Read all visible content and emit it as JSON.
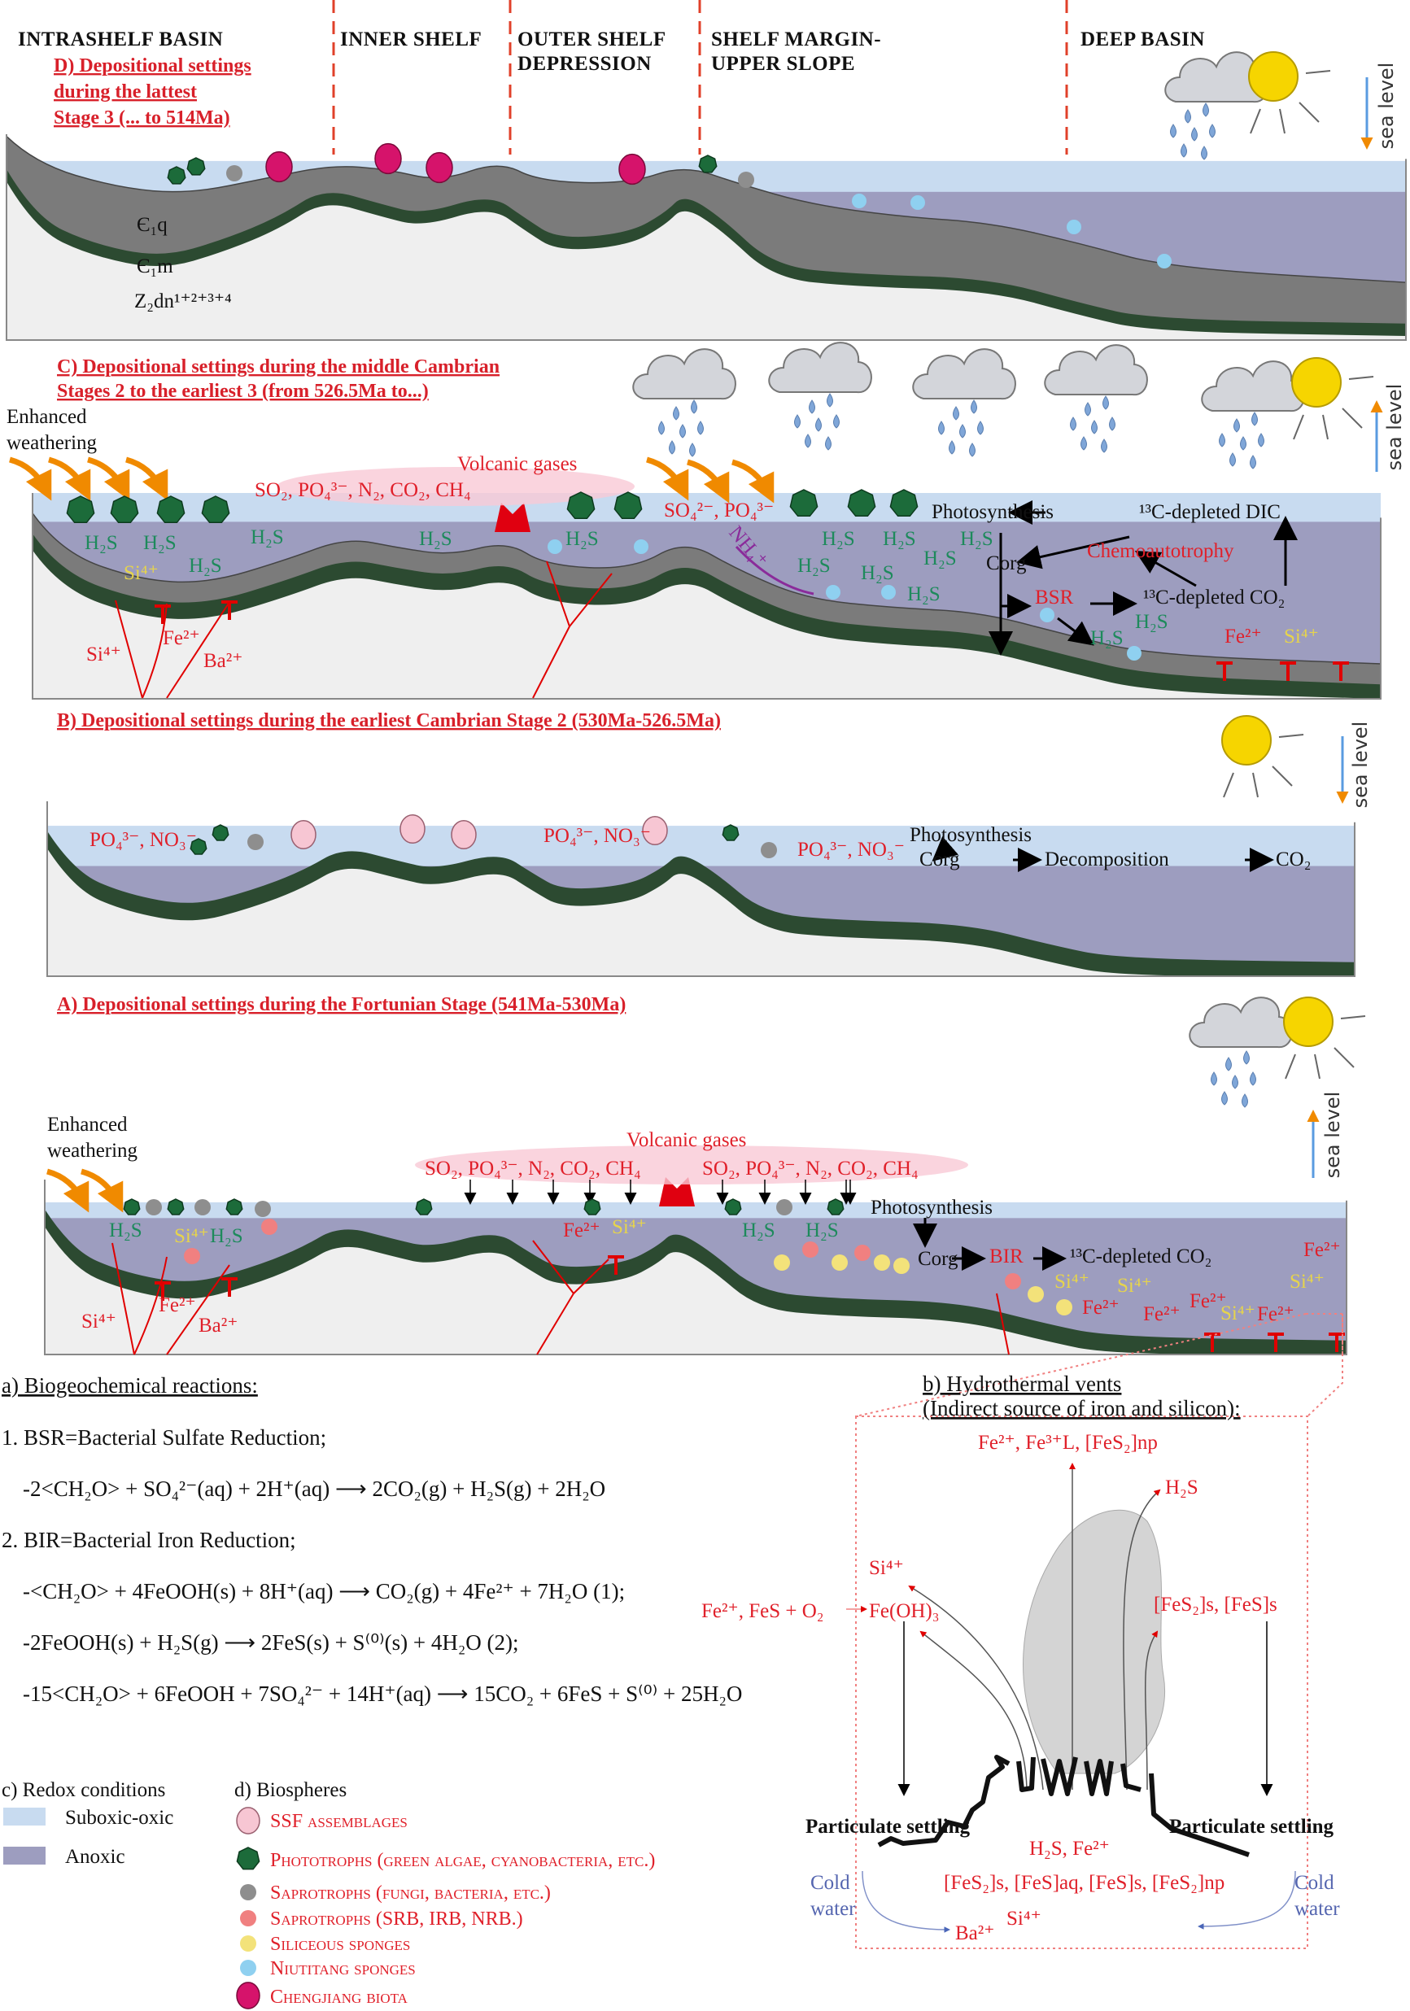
{
  "colors": {
    "suboxic_oxic": "#c8dbf0",
    "anoxic": "#9d9dbf",
    "rock_gray": "#7b7b7b",
    "rock_green": "#2c4a31",
    "basement": "#efefef",
    "label_red": "#e0202a",
    "label_green": "#1e8a5c",
    "label_yellow": "#e6d44c",
    "weathering_orange": "#f08a00",
    "zone_divider": "#e0402a"
  },
  "zones": {
    "intrashelf": "INTRASHELF BASIN",
    "inner_shelf": "INNER SHELF",
    "outer_shelf": [
      "OUTER SHELF",
      "DEPRESSION"
    ],
    "shelf_margin": [
      "SHELF MARGIN-",
      "UPPER SLOPE"
    ],
    "deep_basin": "DEEP BASIN"
  },
  "panel_d": {
    "title": [
      "D) Depositional settings",
      "during the lattest",
      "Stage 3  (... to 514Ma)"
    ],
    "strata": {
      "upper": "Є₁q",
      "middle": "Є₁m",
      "lower": "Z₂dn¹⁺²⁺³⁺⁴"
    },
    "sea_level": "sea level",
    "sea_level_trend": "falling"
  },
  "panel_c": {
    "title": [
      "C) Depositional settings during the middle Cambrian",
      "Stages 2 to the earliest 3 (from 526.5Ma to...)"
    ],
    "weathering": [
      "Enhanced",
      "weathering"
    ],
    "volcanic": "Volcanic gases",
    "gases": "SO₂, PO₄³⁻, N₂, CO₂, CH₄",
    "nutrients": "SO₄²⁻, PO₄³⁻",
    "h2s": "H₂S",
    "si": "Si⁴⁺",
    "fe": "Fe²⁺",
    "ba": "Ba²⁺",
    "nh4": "NH₄⁺",
    "photosynthesis": "Photosynthesis",
    "dic": "¹³C-depleted DIC",
    "corg": "Corg",
    "chemo": "Chemoautotrophy",
    "bsr": "BSR",
    "co2": "¹³C-depleted CO₂",
    "sea_level": "sea level",
    "sea_level_trend": "rising"
  },
  "panel_b": {
    "title": "B) Depositional settings during the earliest Cambrian Stage 2 (530Ma-526.5Ma)",
    "nutrients": "PO₄³⁻, NO₃⁻",
    "photosynthesis": "Photosynthesis",
    "corg": "Corg",
    "decomposition": "Decomposition",
    "co2": "CO₂",
    "sea_level": "sea level",
    "sea_level_trend": "falling"
  },
  "panel_a": {
    "title": "A) Depositional settings during the Fortunian Stage (541Ma-530Ma)",
    "weathering": [
      "Enhanced",
      "weathering"
    ],
    "volcanic": "Volcanic gases",
    "gases": "SO₂, PO₄³⁻, N₂, CO₂, CH₄",
    "h2s": "H₂S",
    "si": "Si⁴⁺",
    "fe": "Fe²⁺",
    "ba": "Ba²⁺",
    "photosynthesis": "Photosynthesis",
    "corg": "Corg",
    "bir": "BIR",
    "co2": "¹³C-depleted CO₂",
    "sea_level": "sea level",
    "sea_level_trend": "rising"
  },
  "reactions": {
    "heading": "a) Biogeochemical reactions:",
    "bsr_heading": "1. BSR=Bacterial Sulfate Reduction;",
    "bsr_eq": "-2<CH₂O> + SO₄²⁻(aq) + 2H⁺(aq) ⟶ 2CO₂(g) + H₂S(g) + 2H₂O",
    "bir_heading": "2. BIR=Bacterial Iron Reduction;",
    "bir_eq1": "-<CH₂O> + 4FeOOH(s) + 8H⁺(aq) ⟶ CO₂(g) + 4Fe²⁺ + 7H₂O (1);",
    "bir_eq2": "-2FeOOH(s) + H₂S(g) ⟶ 2FeS(s) + S⁽⁰⁾(s) + 4H₂O (2);",
    "bir_eq3": "-15<CH₂O> + 6FeOOH + 7SO₄²⁻ + 14H⁺(aq) ⟶ 15CO₂ + 6FeS + S⁽⁰⁾ + 25H₂O"
  },
  "vents": {
    "heading": [
      "b) Hydrothermal vents",
      "(Indirect source of iron and silicon):"
    ],
    "top_products": "Fe²⁺, Fe³⁺L, [FeS₂]np",
    "h2s": "H₂S",
    "si": "Si⁴⁺",
    "oxidation_reactants": "Fe²⁺, FeS + O₂",
    "fe_oh3": "Fe(OH)₃",
    "fes_solids": "[FeS₂]s, [FeS]s",
    "particulate_settling": "Particulate settling",
    "vent_fluids": "H₂S, Fe²⁺",
    "fes_species": "[FeS₂]s, [FeS]aq, [FeS]s, [FeS₂]np",
    "cold": "Cold",
    "water": "water",
    "ba": "Ba²⁺",
    "si_bottom": "Si⁴⁺"
  },
  "legend": {
    "redox_heading": "c) Redox conditions",
    "redox": [
      {
        "label": "Suboxic-oxic",
        "color": "#c8dbf0"
      },
      {
        "label": "Anoxic",
        "color": "#9d9dbf"
      }
    ],
    "bio_heading": "d) Biospheres",
    "biospheres": [
      {
        "label": "SSF assemblages",
        "icon": "pink-circle",
        "color": "#f7c6d3"
      },
      {
        "label": "Phototrophs (green algae, cyanobacteria, etc.)",
        "icon": "green-star-polygon",
        "color": "#1c6b3a"
      },
      {
        "label": "Saprotrophs (fungi, bacteria, etc.)",
        "icon": "gray-circle",
        "color": "#8e8e8e"
      },
      {
        "label": "Saprotrophs (SRB, IRB, NRB.)",
        "icon": "salmon-circle",
        "color": "#f08080"
      },
      {
        "label": "Siliceous sponges",
        "icon": "yellow-circle",
        "color": "#f3e27a"
      },
      {
        "label": "Niutitang sponges",
        "icon": "light-blue-circle",
        "color": "#8fd0f0"
      },
      {
        "label": "Chengjiang biota",
        "icon": "magenta-circle",
        "color": "#d6136b"
      }
    ]
  }
}
